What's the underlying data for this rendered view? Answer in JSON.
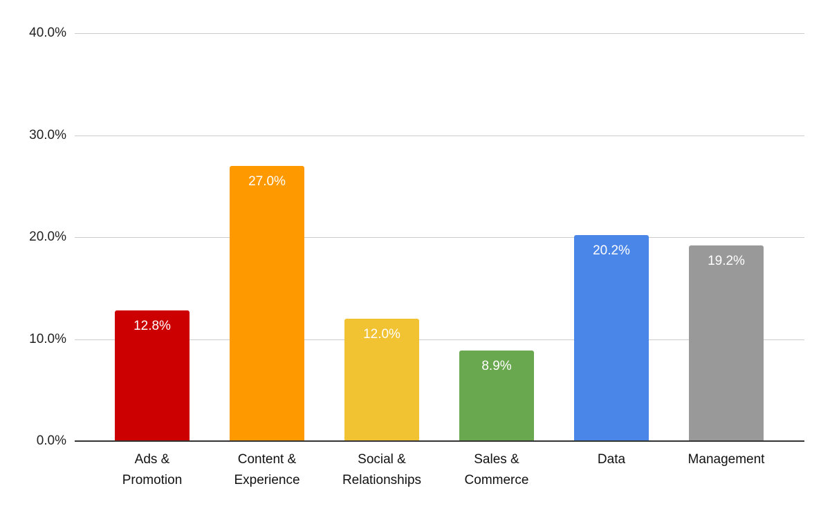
{
  "chart_data": {
    "type": "bar",
    "title": "",
    "xlabel": "",
    "ylabel": "",
    "ylim": [
      0,
      40
    ],
    "grid": true,
    "legend": null,
    "yticks": [
      "0.0%",
      "10.0%",
      "20.0%",
      "30.0%",
      "40.0%"
    ],
    "categories": [
      "Ads &\nPromotion",
      "Content &\nExperience",
      "Social &\nRelationships",
      "Sales &\nCommerce",
      "Data",
      "Management"
    ],
    "values": [
      12.8,
      27.0,
      12.0,
      8.9,
      20.2,
      19.2
    ],
    "value_labels": [
      "12.8%",
      "27.0%",
      "12.0%",
      "8.9%",
      "20.2%",
      "19.2%"
    ],
    "colors": [
      "#cc0000",
      "#ff9900",
      "#f1c232",
      "#6aa84f",
      "#4a86e8",
      "#999999"
    ]
  }
}
